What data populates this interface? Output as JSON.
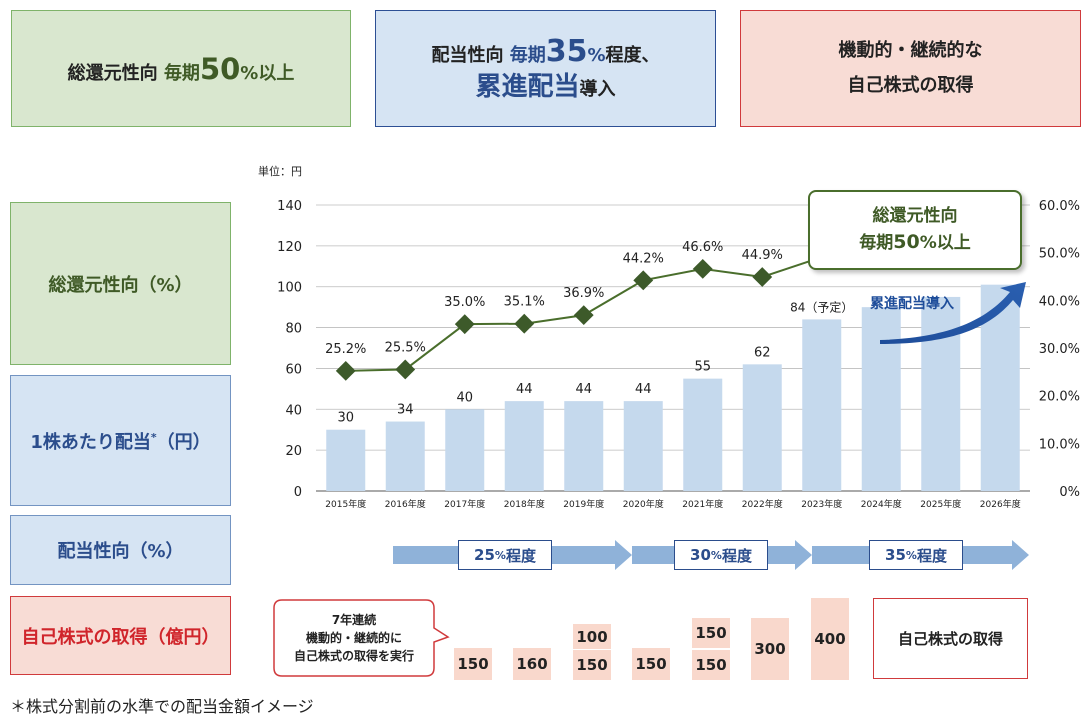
{
  "top": {
    "box1": {
      "pre": "総還元性向",
      "mid": "毎期",
      "big": "50",
      "pct": "%",
      "post": "以上"
    },
    "box2": {
      "pre": "配当性向",
      "mid": "毎期",
      "big": "35",
      "pct": "%",
      "post": "程度、",
      "line2_big": "累進配当",
      "line2_post": "導入"
    },
    "box3": {
      "line1": "機動的・継続的な",
      "line2": "自己株式の取得"
    }
  },
  "left_labels": {
    "payout_total": "総還元性向（%）",
    "dps_pre": "1株あたり配当",
    "dps_star": "*",
    "dps_post": "（円）",
    "payout": "配当性向（%）",
    "buyback": "自己株式の取得（億円）"
  },
  "unit_label": "単位：円",
  "callout": {
    "line1": "総還元性向",
    "line2_pre": "毎期",
    "line2_big": "50",
    "line2_pct": "%",
    "line2_post": "以上"
  },
  "progressive_label": "累進配当導入",
  "payout_arrows": [
    {
      "label_num": "25",
      "label_pct": "%",
      "label_post": "程度"
    },
    {
      "label_num": "30",
      "label_pct": "%",
      "label_post": "程度"
    },
    {
      "label_num": "35",
      "label_pct": "%",
      "label_post": "程度"
    }
  ],
  "buyback_bubble": {
    "line1": "7年連続",
    "line2": "機動的・継続的に",
    "line3": "自己株式の取得を実行"
  },
  "buyback_box": "自己株式の取得",
  "buyback_values": [
    {
      "top": "",
      "bottom": "150"
    },
    {
      "top": "",
      "bottom": "160"
    },
    {
      "top": "100",
      "bottom": "150"
    },
    {
      "top": "",
      "bottom": "150"
    },
    {
      "top": "150",
      "bottom": "150"
    },
    {
      "top": "",
      "bottom": "300"
    },
    {
      "top": "",
      "bottom": "400"
    }
  ],
  "footnote": "＊株式分割前の水準での配当金額イメージ",
  "chart_data": {
    "type": "bar",
    "categories": [
      "2015年度",
      "2016年度",
      "2017年度",
      "2018年度",
      "2019年度",
      "2020年度",
      "2021年度",
      "2022年度",
      "2023年度",
      "2024年度",
      "2025年度",
      "2026年度"
    ],
    "series": [
      {
        "name": "1株あたり配当",
        "type": "bar",
        "values": [
          30,
          34,
          40,
          44,
          44,
          44,
          55,
          62,
          84,
          null,
          null,
          null
        ],
        "labels": [
          "30",
          "34",
          "40",
          "44",
          "44",
          "44",
          "55",
          "62",
          "84（予定）",
          "",
          "",
          ""
        ],
        "future_heights": [
          null,
          null,
          null,
          null,
          null,
          null,
          null,
          null,
          null,
          90,
          95,
          101
        ]
      },
      {
        "name": "総還元性向",
        "type": "line",
        "axis": "right",
        "values": [
          25.2,
          25.5,
          35.0,
          35.1,
          36.9,
          44.2,
          46.6,
          44.9,
          null,
          null,
          null,
          null
        ],
        "labels": [
          "25.2%",
          "25.5%",
          "35.0%",
          "35.1%",
          "36.9%",
          "44.2%",
          "46.6%",
          "44.9%",
          "",
          "",
          "",
          ""
        ]
      }
    ],
    "yleft_ticks": [
      "0",
      "20",
      "40",
      "60",
      "80",
      "100",
      "120",
      "140"
    ],
    "yleft_lim": [
      0,
      140
    ],
    "yright_ticks": [
      "0%",
      "10.0%",
      "20.0%",
      "30.0%",
      "40.0%",
      "50.0%",
      "60.0%"
    ],
    "yright_lim": [
      0,
      60
    ],
    "colors": {
      "bar": "#c5d9ed",
      "line": "#4a6e2c",
      "marker": "#3d5a2a"
    },
    "grid": true
  }
}
